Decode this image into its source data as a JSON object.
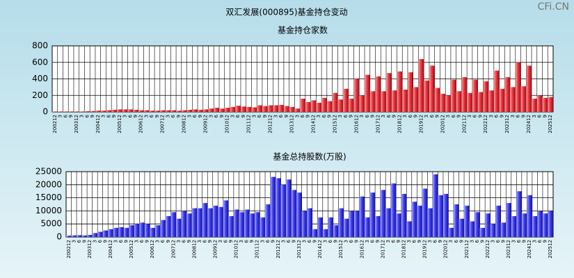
{
  "watermark": "CFi.CN",
  "title": "双汇发展(000895)基金持仓变动",
  "chart_data": [
    {
      "type": "bar",
      "title": "基金持仓家数",
      "color": "#e8323a",
      "ylim": [
        0,
        800
      ],
      "yticks": [
        0,
        200,
        400,
        600,
        800
      ],
      "grid": true,
      "categories": [
        "200212",
        "3",
        "6",
        "9",
        "200312",
        "3",
        "6",
        "9",
        "200412",
        "3",
        "6",
        "9",
        "200512",
        "3",
        "6",
        "9",
        "200612",
        "3",
        "6",
        "9",
        "200712",
        "3",
        "6",
        "9",
        "200812",
        "3",
        "6",
        "9",
        "200912",
        "3",
        "6",
        "9",
        "201012",
        "3",
        "6",
        "9",
        "201112",
        "3",
        "6",
        "9",
        "201212",
        "3",
        "6",
        "9",
        "201312",
        "3",
        "6",
        "9",
        "201412",
        "3",
        "6",
        "9",
        "201512",
        "3",
        "6",
        "9",
        "201612",
        "3",
        "6",
        "9",
        "201712",
        "3",
        "6",
        "9",
        "201812",
        "3",
        "6",
        "9",
        "201912",
        "3",
        "6",
        "9",
        "202012",
        "3",
        "6",
        "9",
        "202112",
        "3",
        "6",
        "9",
        "202212",
        "3",
        "6",
        "9",
        "202312",
        "3",
        "6",
        "9",
        "202412",
        "3",
        "6",
        "9",
        "202512"
      ],
      "values": [
        5,
        5,
        5,
        5,
        5,
        5,
        8,
        10,
        15,
        15,
        20,
        25,
        30,
        30,
        30,
        25,
        20,
        20,
        15,
        15,
        20,
        20,
        20,
        15,
        20,
        25,
        30,
        25,
        30,
        40,
        50,
        40,
        50,
        60,
        75,
        65,
        60,
        55,
        80,
        70,
        80,
        80,
        85,
        70,
        60,
        40,
        160,
        120,
        140,
        110,
        170,
        130,
        230,
        150,
        280,
        160,
        400,
        200,
        450,
        250,
        430,
        250,
        470,
        260,
        490,
        270,
        480,
        300,
        640,
        380,
        560,
        290,
        220,
        200,
        390,
        250,
        420,
        230,
        390,
        240,
        370,
        260,
        500,
        280,
        420,
        300,
        600,
        310,
        560,
        160,
        200,
        170,
        180
      ]
    },
    {
      "type": "bar",
      "title": "基金总持股数(万股)",
      "color": "#3b3bf2",
      "ylim": [
        0,
        25000
      ],
      "yticks": [
        0,
        5000,
        10000,
        15000,
        20000,
        25000
      ],
      "grid": true,
      "categories": [
        "200212",
        "3",
        "6",
        "9",
        "200312",
        "3",
        "6",
        "9",
        "200412",
        "3",
        "6",
        "9",
        "200512",
        "3",
        "6",
        "9",
        "200612",
        "3",
        "6",
        "9",
        "200712",
        "3",
        "6",
        "9",
        "200812",
        "3",
        "6",
        "9",
        "200912",
        "3",
        "6",
        "9",
        "201012",
        "3",
        "6",
        "9",
        "201112",
        "3",
        "6",
        "9",
        "201212",
        "3",
        "6",
        "9",
        "201312",
        "3",
        "6",
        "9",
        "201412",
        "3",
        "6",
        "9",
        "201512",
        "3",
        "6",
        "9",
        "201612",
        "3",
        "6",
        "9",
        "201712",
        "3",
        "6",
        "9",
        "201812",
        "3",
        "6",
        "9",
        "201912",
        "3",
        "6",
        "9",
        "202012",
        "3",
        "6",
        "9",
        "202112",
        "3",
        "6",
        "9",
        "202212",
        "3",
        "6",
        "9",
        "202312",
        "3",
        "6",
        "9",
        "202412",
        "3",
        "6",
        "9",
        "202512"
      ],
      "values": [
        500,
        600,
        700,
        600,
        800,
        1500,
        2000,
        2500,
        3000,
        3500,
        3800,
        3500,
        4500,
        5000,
        5500,
        5000,
        3500,
        4500,
        6500,
        8000,
        9500,
        7000,
        10000,
        9000,
        11000,
        11000,
        13000,
        11000,
        12000,
        11500,
        14000,
        8000,
        10500,
        9500,
        10500,
        9000,
        9500,
        7500,
        12500,
        23000,
        22500,
        20000,
        22000,
        18000,
        17000,
        10000,
        11000,
        3000,
        7500,
        3000,
        7500,
        4500,
        11000,
        7000,
        10000,
        10000,
        15500,
        7500,
        17000,
        8000,
        18000,
        11000,
        20500,
        9000,
        16500,
        6000,
        13500,
        12000,
        18500,
        11000,
        24000,
        16000,
        16500,
        3500,
        12500,
        7000,
        12000,
        6000,
        9500,
        3500,
        9000,
        5000,
        12000,
        5500,
        13000,
        8000,
        17500,
        9000,
        16000,
        8000,
        10000,
        9000,
        10000
      ]
    }
  ]
}
